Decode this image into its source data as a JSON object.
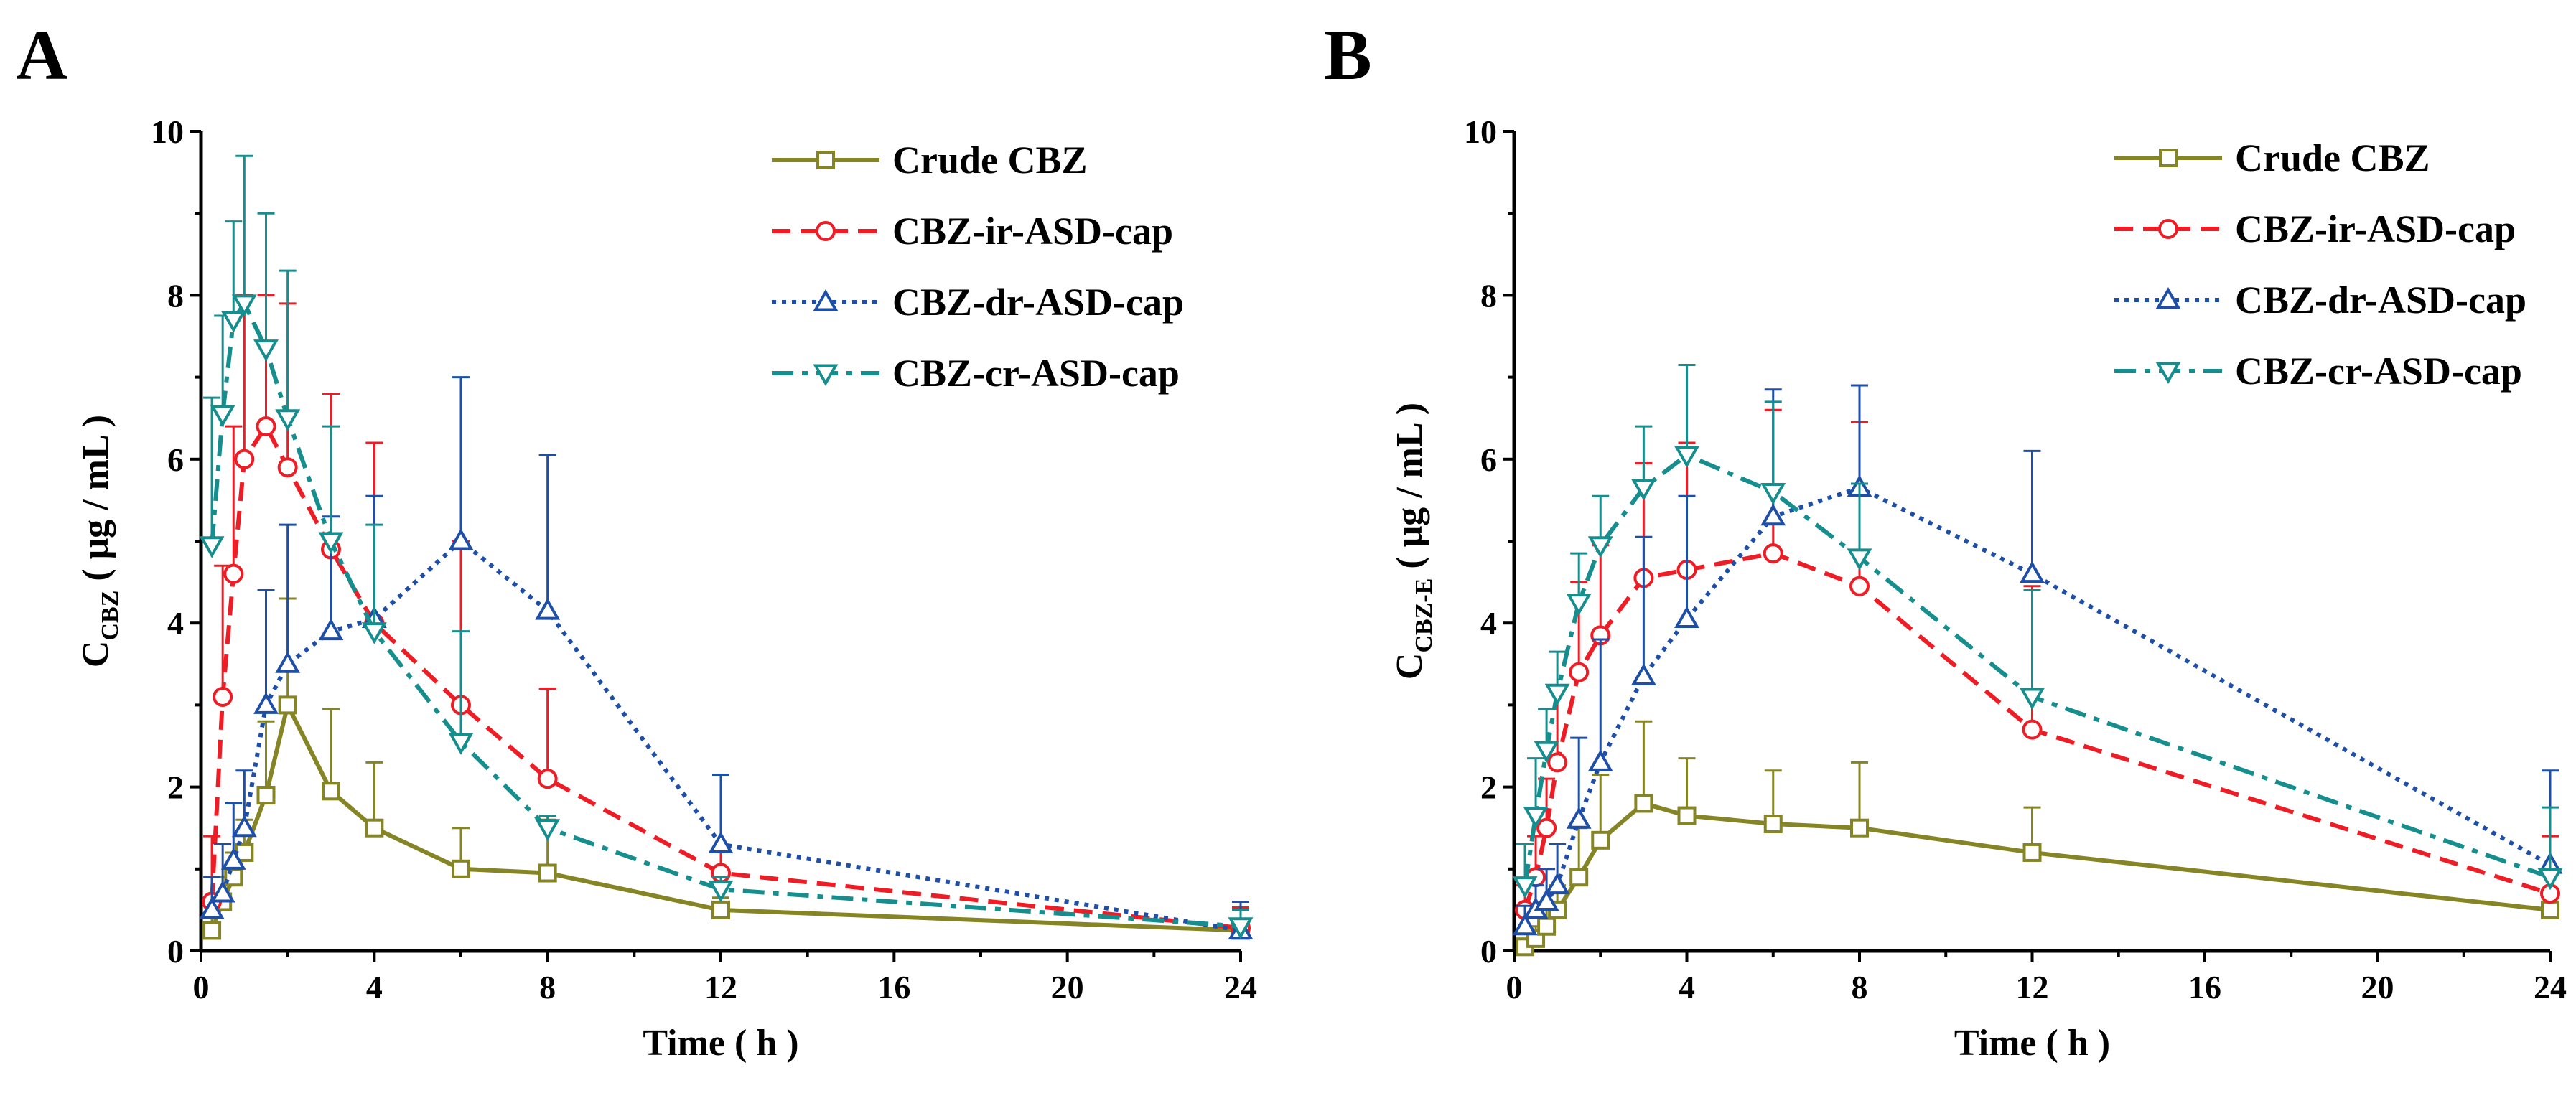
{
  "chart_data": [
    {
      "type": "line",
      "panel": "A",
      "xlabel": "Time ( h )",
      "ylabel": {
        "main": "C",
        "sub": "CBZ",
        "unit": " ( μg / mL )"
      },
      "xlim": [
        0,
        24
      ],
      "ylim": [
        0,
        10
      ],
      "xticks": [
        0,
        4,
        8,
        12,
        16,
        20,
        24
      ],
      "yticks": [
        0,
        2,
        4,
        6,
        8,
        10
      ],
      "legend_position": "top-right",
      "series": [
        {
          "name": "Crude CBZ",
          "color": "#858526",
          "dash": "solid",
          "marker": "square",
          "x": [
            0.25,
            0.5,
            0.75,
            1,
            1.5,
            2,
            3,
            4,
            6,
            8,
            12,
            24
          ],
          "y": [
            0.25,
            0.6,
            0.9,
            1.2,
            1.9,
            3.0,
            1.95,
            1.5,
            1.0,
            0.95,
            0.5,
            0.25
          ],
          "err": [
            0.15,
            0.3,
            0.3,
            0.4,
            0.9,
            1.3,
            1.0,
            0.8,
            0.5,
            0.65,
            0.15,
            0.1
          ]
        },
        {
          "name": "CBZ-ir-ASD-cap",
          "color": "#ee1c25",
          "dash": "dashed",
          "marker": "circle",
          "x": [
            0.25,
            0.5,
            0.75,
            1,
            1.5,
            2,
            3,
            4,
            6,
            8,
            12,
            24
          ],
          "y": [
            0.6,
            3.1,
            4.6,
            6.0,
            6.4,
            5.9,
            4.9,
            4.0,
            3.0,
            2.1,
            0.95,
            0.28
          ],
          "err": [
            0.8,
            1.6,
            1.8,
            2.0,
            1.6,
            2.0,
            1.9,
            2.2,
            2.0,
            1.1,
            0.3,
            0.25
          ]
        },
        {
          "name": "CBZ-dr-ASD-cap",
          "color": "#1e4fa8",
          "dash": "dotted",
          "marker": "triangle-up",
          "x": [
            0.25,
            0.5,
            0.75,
            1,
            1.5,
            2,
            3,
            4,
            6,
            8,
            12,
            24
          ],
          "y": [
            0.5,
            0.7,
            1.1,
            1.5,
            3.0,
            3.5,
            3.9,
            4.05,
            5.0,
            4.15,
            1.3,
            0.25
          ],
          "err": [
            0.4,
            0.6,
            0.7,
            0.7,
            1.4,
            1.7,
            1.4,
            1.5,
            2.0,
            1.9,
            0.85,
            0.35
          ]
        },
        {
          "name": "CBZ-cr-ASD-cap",
          "color": "#168e8e",
          "dash": "dashdot",
          "marker": "triangle-down",
          "x": [
            0.25,
            0.5,
            0.75,
            1,
            1.5,
            2,
            3,
            4,
            6,
            8,
            12,
            24
          ],
          "y": [
            4.95,
            6.55,
            7.7,
            7.9,
            7.35,
            6.5,
            5.0,
            3.9,
            2.55,
            1.5,
            0.75,
            0.3
          ],
          "err": [
            1.8,
            1.2,
            1.2,
            1.8,
            1.65,
            1.8,
            1.4,
            1.3,
            1.35,
            0.15,
            0.15,
            0.2
          ]
        }
      ]
    },
    {
      "type": "line",
      "panel": "B",
      "xlabel": "Time ( h )",
      "ylabel": {
        "main": "C",
        "sub": "CBZ-E",
        "unit": " ( μg / mL )"
      },
      "xlim": [
        0,
        24
      ],
      "ylim": [
        0,
        10
      ],
      "xticks": [
        0,
        4,
        8,
        12,
        16,
        20,
        24
      ],
      "yticks": [
        0,
        2,
        4,
        6,
        8,
        10
      ],
      "legend_position": "top-right",
      "series": [
        {
          "name": "Crude CBZ",
          "color": "#858526",
          "dash": "solid",
          "marker": "square",
          "x": [
            0.25,
            0.5,
            0.75,
            1,
            1.5,
            2,
            3,
            4,
            6,
            8,
            12,
            24
          ],
          "y": [
            0.05,
            0.15,
            0.3,
            0.5,
            0.9,
            1.35,
            1.8,
            1.65,
            1.55,
            1.5,
            1.2,
            0.5
          ],
          "err": [
            0.1,
            0.15,
            0.2,
            0.3,
            0.6,
            0.8,
            1.0,
            0.7,
            0.65,
            0.8,
            0.55,
            0.2
          ]
        },
        {
          "name": "CBZ-ir-ASD-cap",
          "color": "#ee1c25",
          "dash": "dashed",
          "marker": "circle",
          "x": [
            0.25,
            0.5,
            0.75,
            1,
            1.5,
            2,
            3,
            4,
            6,
            8,
            12,
            24
          ],
          "y": [
            0.5,
            0.9,
            1.5,
            2.3,
            3.4,
            3.85,
            4.55,
            4.65,
            4.85,
            4.45,
            2.7,
            0.7
          ],
          "err": [
            0.3,
            0.5,
            0.6,
            0.9,
            1.1,
            1.1,
            1.4,
            1.55,
            1.75,
            2.0,
            1.75,
            0.7
          ]
        },
        {
          "name": "CBZ-dr-ASD-cap",
          "color": "#1e4fa8",
          "dash": "dotted",
          "marker": "triangle-up",
          "x": [
            0.25,
            0.5,
            0.75,
            1,
            1.5,
            2,
            3,
            4,
            6,
            8,
            12,
            24
          ],
          "y": [
            0.3,
            0.5,
            0.6,
            0.8,
            1.6,
            2.3,
            3.35,
            4.05,
            5.3,
            5.65,
            4.6,
            1.05
          ],
          "err": [
            0.25,
            0.3,
            0.4,
            0.5,
            1.0,
            1.5,
            1.7,
            1.5,
            1.55,
            1.25,
            1.5,
            1.15
          ]
        },
        {
          "name": "CBZ-cr-ASD-cap",
          "color": "#168e8e",
          "dash": "dashdot",
          "marker": "triangle-down",
          "x": [
            0.25,
            0.5,
            0.75,
            1,
            1.5,
            2,
            3,
            4,
            6,
            8,
            12,
            24
          ],
          "y": [
            0.8,
            1.65,
            2.45,
            3.15,
            4.25,
            4.95,
            5.65,
            6.05,
            5.6,
            4.8,
            3.1,
            0.9
          ],
          "err": [
            0.5,
            0.7,
            0.5,
            0.5,
            0.6,
            0.6,
            0.75,
            1.1,
            1.1,
            0.9,
            1.3,
            0.85
          ]
        }
      ]
    }
  ]
}
